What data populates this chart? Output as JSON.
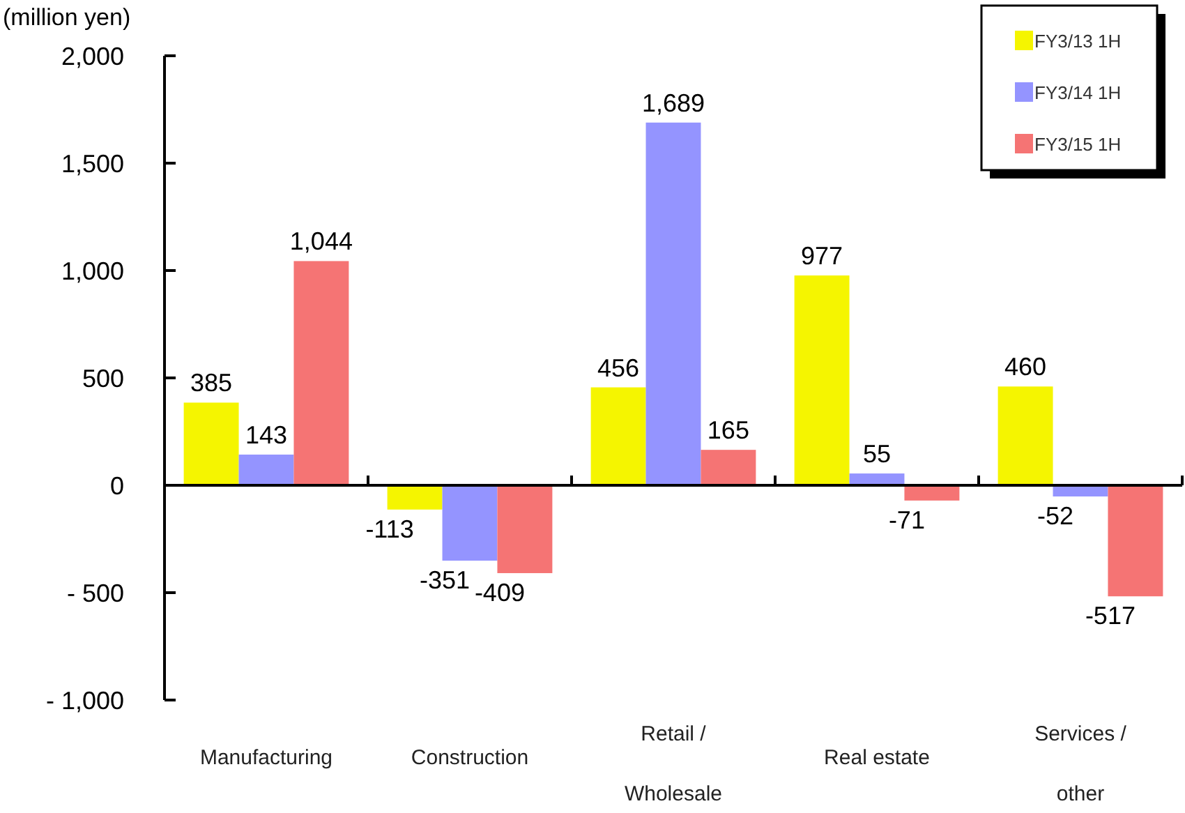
{
  "chart_data": {
    "type": "bar",
    "ylabel": "(million yen)",
    "categories": [
      "Manufacturing",
      "Construction",
      "Retail / Wholesale",
      "Real estate",
      "Services / other"
    ],
    "series": [
      {
        "name": "FY3/13 1H",
        "color": "#f5f500",
        "values": [
          385,
          -113,
          456,
          977,
          460
        ],
        "value_labels": [
          "385",
          "-113",
          "456",
          "977",
          "460"
        ]
      },
      {
        "name": "FY3/14 1H",
        "color": "#9494ff",
        "values": [
          143,
          -351,
          1689,
          55,
          -52
        ],
        "value_labels": [
          "143",
          "-351",
          "1,689",
          "55",
          "-52"
        ]
      },
      {
        "name": "FY3/15 1H",
        "color": "#f57474",
        "values": [
          1044,
          -409,
          165,
          -71,
          -517
        ],
        "value_labels": [
          "1,044",
          "-409",
          "165",
          "-71",
          "-517"
        ]
      }
    ],
    "ylim": [
      -1000,
      2000
    ],
    "yticks": [
      {
        "value": -1000,
        "label": "- 1,000"
      },
      {
        "value": -500,
        "label": "- 500"
      },
      0,
      {
        "value": 500,
        "label": "500"
      },
      {
        "value": 1000,
        "label": "1,000"
      },
      {
        "value": 1500,
        "label": "1,500"
      },
      {
        "value": 2000,
        "label": "2,000"
      }
    ],
    "legend": "top right"
  }
}
